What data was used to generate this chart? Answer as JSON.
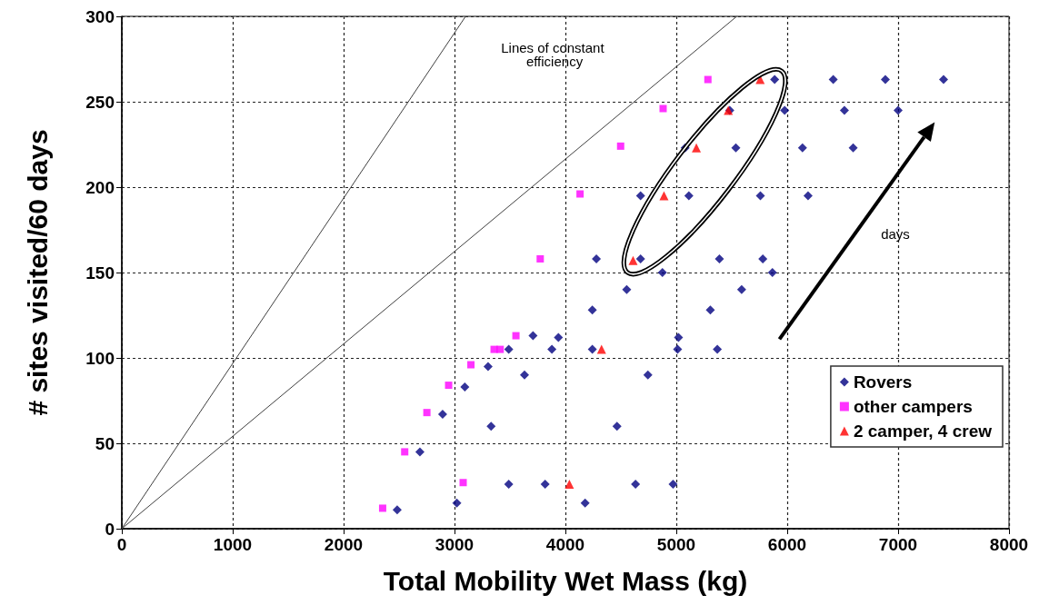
{
  "chart_data": {
    "type": "scatter",
    "xlabel": "Total Mobility Wet Mass (kg)",
    "ylabel": "# sites visited/60 days",
    "xlim": [
      0,
      8000
    ],
    "xticks": [
      0,
      1000,
      2000,
      3000,
      4000,
      5000,
      6000,
      7000,
      8000
    ],
    "ylim": [
      0,
      300
    ],
    "yticks": [
      0,
      50,
      100,
      150,
      200,
      250,
      300
    ],
    "grid": true,
    "legend": "bottom right",
    "series": [
      {
        "name": "Rovers",
        "color": "#000080",
        "marker": "diamond",
        "x": [
          2483,
          2688,
          2893,
          3093,
          3303,
          3021,
          3330,
          3489,
          3708,
          3631,
          3878,
          3937,
          3489,
          3817,
          4178,
          4243,
          4243,
          4465,
          4553,
          4744,
          4632,
          4971,
          5020,
          5012,
          5370,
          5887,
          6415,
          6885,
          7410,
          5482,
          5977,
          6516,
          7000,
          5080,
          5537,
          6138,
          6595,
          4678,
          5113,
          5758,
          6188,
          4279,
          4678,
          5389,
          5780,
          4875,
          5867,
          5589,
          5307
        ],
        "values": [
          11,
          45,
          67,
          83,
          95,
          15,
          60,
          105,
          113,
          90,
          105,
          112,
          26,
          26,
          15,
          128,
          105,
          60,
          140,
          90,
          26,
          26,
          112,
          105,
          105,
          263,
          263,
          263,
          263,
          245,
          245,
          245,
          245,
          223,
          223,
          223,
          223,
          195,
          195,
          195,
          195,
          158,
          158,
          158,
          158,
          150,
          150,
          140,
          128
        ]
      },
      {
        "name": "other campers",
        "color": "#ff00ff",
        "marker": "square",
        "x": [
          2352,
          2551,
          2751,
          2947,
          3148,
          3357,
          3412,
          3554,
          3078,
          3773,
          4132,
          4498,
          4881,
          5285
        ],
        "values": [
          12,
          45,
          68,
          84,
          96,
          105,
          105,
          113,
          27,
          158,
          196,
          224,
          246,
          263
        ]
      },
      {
        "name": "2 camper, 4 crew",
        "color": "#ff0000",
        "marker": "triangle",
        "x": [
          4036,
          4326,
          4610,
          4889,
          5181,
          5469,
          5756
        ],
        "values": [
          26,
          105,
          157,
          195,
          223,
          245,
          263
        ]
      },
      {
        "type": "line",
        "color": "#404040",
        "marker": "none",
        "x": [
          0,
          3100
        ],
        "values": [
          0,
          300
        ]
      },
      {
        "type": "line",
        "color": "#404040",
        "marker": "none",
        "x": [
          0,
          5545
        ],
        "values": [
          0,
          300
        ]
      }
    ],
    "annotations": [
      "Lines of constant efficiency",
      "days"
    ]
  }
}
